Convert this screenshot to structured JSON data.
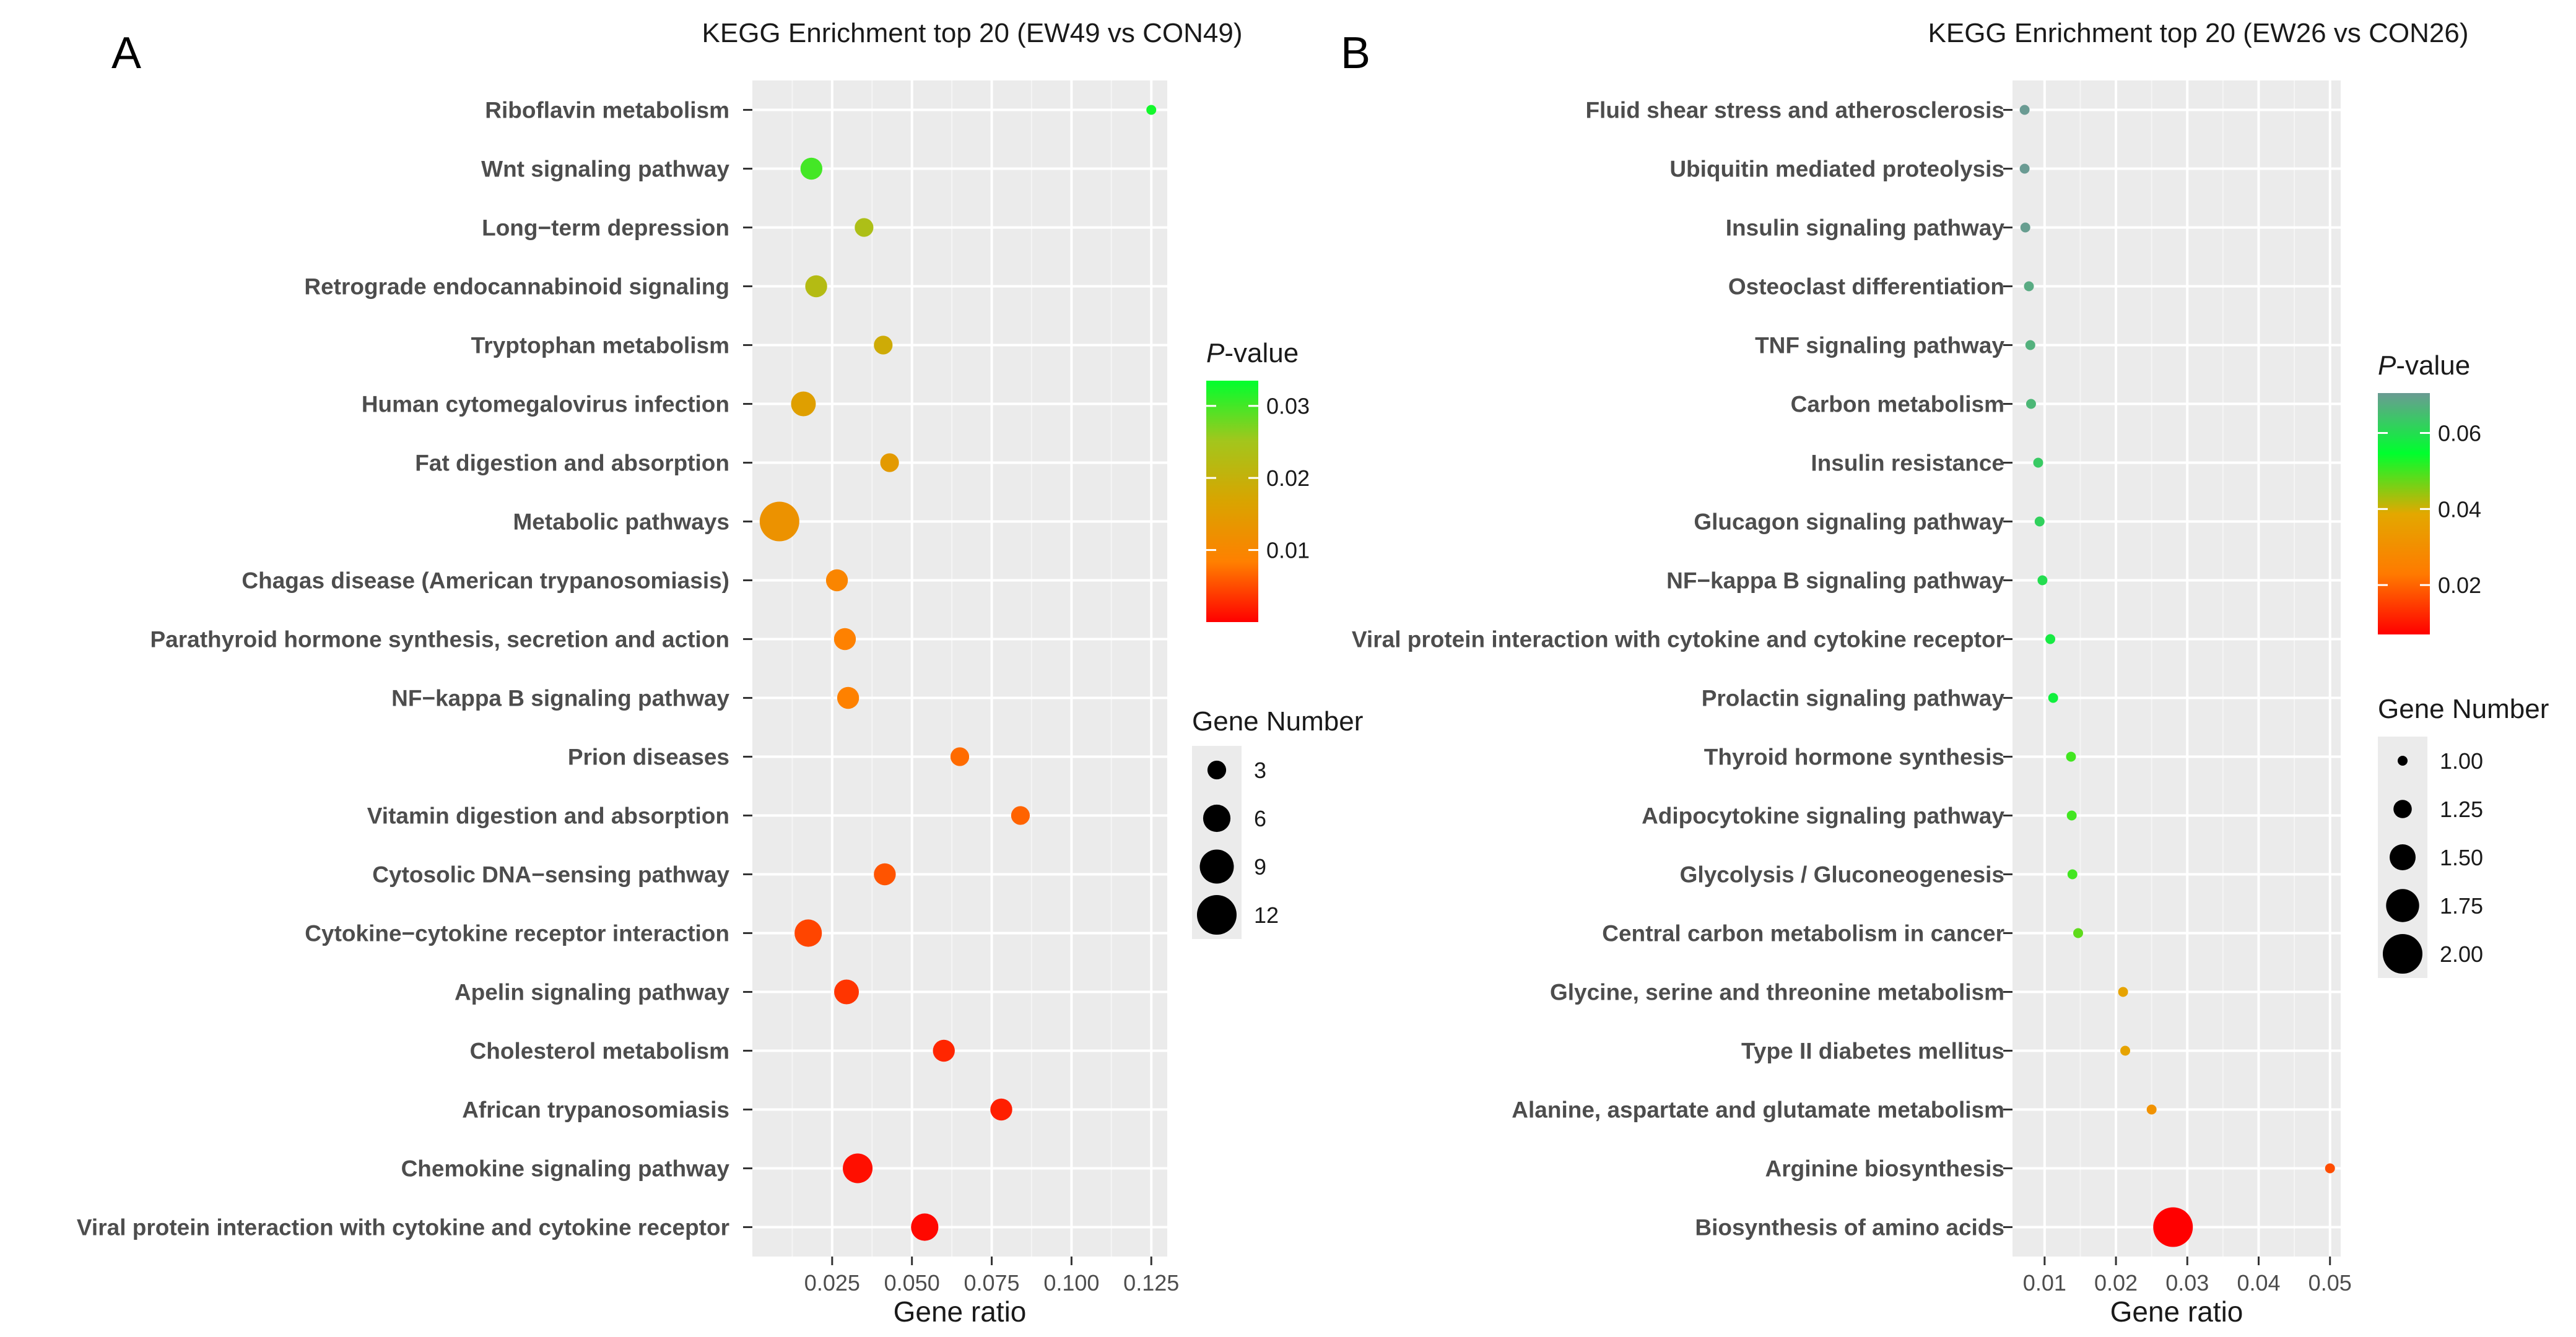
{
  "chart_data": [
    {
      "panel": "A",
      "type": "scatter",
      "title": "KEGG Enrichment top 20 (EW49 vs CON49)",
      "xlabel": "Gene ratio",
      "ylabel": "",
      "xlim": [
        0.0,
        0.13
      ],
      "xticks": [
        0.025,
        0.05,
        0.075,
        0.1,
        0.125
      ],
      "xtick_labels": [
        "0.025",
        "0.050",
        "0.075",
        "0.100",
        "0.125"
      ],
      "grid": true,
      "color_legend": {
        "title_italic": "P",
        "title_rest": "-value",
        "min": 0.0,
        "max": 0.0335,
        "ticks": [
          0.01,
          0.02,
          0.03
        ],
        "tick_labels": [
          "0.01",
          "0.02",
          "0.03"
        ],
        "colors": [
          "#ff0000",
          "#ff8000",
          "#d9a400",
          "#a3c61c",
          "#00ff2e"
        ]
      },
      "size_legend": {
        "title": "Gene Number",
        "values": [
          3,
          6,
          9,
          12
        ],
        "labels": [
          "3",
          "6",
          "9",
          "12"
        ],
        "min": 1,
        "max": 12
      },
      "points": [
        {
          "term": "Riboflavin metabolism",
          "x": 0.125,
          "genes": 1,
          "p": 0.0325
        },
        {
          "term": "Wnt signaling pathway",
          "x": 0.0185,
          "genes": 4,
          "p": 0.03
        },
        {
          "term": "Long−term depression",
          "x": 0.035,
          "genes": 3,
          "p": 0.0235
        },
        {
          "term": "Retrograde endocannabinoid signaling",
          "x": 0.02,
          "genes": 4,
          "p": 0.0225
        },
        {
          "term": "Tryptophan metabolism",
          "x": 0.041,
          "genes": 3,
          "p": 0.0185
        },
        {
          "term": "Human cytomegalovirus infection",
          "x": 0.016,
          "genes": 5,
          "p": 0.0155
        },
        {
          "term": "Fat digestion and absorption",
          "x": 0.043,
          "genes": 3,
          "p": 0.0145
        },
        {
          "term": "Metabolic pathways",
          "x": 0.0085,
          "genes": 12,
          "p": 0.0125
        },
        {
          "term": "Chagas disease (American trypanosomiasis)",
          "x": 0.0265,
          "genes": 4,
          "p": 0.0095
        },
        {
          "term": "Parathyroid hormone synthesis, secretion and action",
          "x": 0.029,
          "genes": 4,
          "p": 0.0085
        },
        {
          "term": "NF−kappa B signaling pathway",
          "x": 0.03,
          "genes": 4,
          "p": 0.0085
        },
        {
          "term": "Prion diseases",
          "x": 0.065,
          "genes": 3,
          "p": 0.007
        },
        {
          "term": "Vitamin digestion and absorption",
          "x": 0.084,
          "genes": 3,
          "p": 0.0065
        },
        {
          "term": "Cytosolic DNA−sensing pathway",
          "x": 0.0415,
          "genes": 4,
          "p": 0.0055
        },
        {
          "term": "Cytokine−cytokine receptor interaction",
          "x": 0.0175,
          "genes": 6,
          "p": 0.0045
        },
        {
          "term": "Apelin signaling pathway",
          "x": 0.0295,
          "genes": 5,
          "p": 0.0035
        },
        {
          "term": "Cholesterol metabolism",
          "x": 0.06,
          "genes": 4,
          "p": 0.0025
        },
        {
          "term": "African trypanosomiasis",
          "x": 0.078,
          "genes": 4,
          "p": 0.002
        },
        {
          "term": "Chemokine signaling pathway",
          "x": 0.033,
          "genes": 7,
          "p": 0.001
        },
        {
          "term": "Viral protein interaction with cytokine and cytokine receptor",
          "x": 0.054,
          "genes": 6,
          "p": 0.0005
        }
      ]
    },
    {
      "panel": "B",
      "type": "scatter",
      "title": "KEGG Enrichment top 20 (EW26 vs CON26)",
      "xlabel": "Gene ratio",
      "ylabel": "",
      "xlim": [
        0.0055,
        0.0515
      ],
      "xticks": [
        0.01,
        0.02,
        0.03,
        0.04,
        0.05
      ],
      "xtick_labels": [
        "0.01",
        "0.02",
        "0.03",
        "0.04",
        "0.05"
      ],
      "grid": true,
      "color_legend": {
        "title_italic": "P",
        "title_rest": "-value",
        "min": 0.007,
        "max": 0.0705,
        "ticks": [
          0.02,
          0.04,
          0.06
        ],
        "tick_labels": [
          "0.02",
          "0.04",
          "0.06"
        ],
        "colors": [
          "#ff0000",
          "#ff7a00",
          "#e3a800",
          "#00ff2e",
          "#6a9b93"
        ]
      },
      "size_legend": {
        "title": "Gene Number",
        "values": [
          1.0,
          1.25,
          1.5,
          1.75,
          2.0
        ],
        "labels": [
          "1.00",
          "1.25",
          "1.50",
          "1.75",
          "2.00"
        ],
        "min": 1.0,
        "max": 2.0
      },
      "points": [
        {
          "term": "Fluid shear stress and atherosclerosis",
          "x": 0.0072,
          "genes": 1,
          "p": 0.0705
        },
        {
          "term": "Ubiquitin mediated proteolysis",
          "x": 0.0072,
          "genes": 1,
          "p": 0.0705
        },
        {
          "term": "Insulin signaling pathway",
          "x": 0.0073,
          "genes": 1,
          "p": 0.07
        },
        {
          "term": "Osteoclast differentiation",
          "x": 0.0078,
          "genes": 1,
          "p": 0.068
        },
        {
          "term": "TNF signaling pathway",
          "x": 0.008,
          "genes": 1,
          "p": 0.067
        },
        {
          "term": "Carbon metabolism",
          "x": 0.0081,
          "genes": 1,
          "p": 0.066
        },
        {
          "term": "Insulin resistance",
          "x": 0.0091,
          "genes": 1,
          "p": 0.063
        },
        {
          "term": "Glucagon signaling pathway",
          "x": 0.0093,
          "genes": 1,
          "p": 0.062
        },
        {
          "term": "NF−kappa B signaling pathway",
          "x": 0.0097,
          "genes": 1,
          "p": 0.06
        },
        {
          "term": "Viral protein interaction with cytokine and cytokine receptor",
          "x": 0.0108,
          "genes": 1,
          "p": 0.058
        },
        {
          "term": "Prolactin signaling pathway",
          "x": 0.0112,
          "genes": 1,
          "p": 0.057
        },
        {
          "term": "Thyroid hormone synthesis",
          "x": 0.0137,
          "genes": 1,
          "p": 0.05
        },
        {
          "term": "Adipocytokine signaling pathway",
          "x": 0.0138,
          "genes": 1,
          "p": 0.05
        },
        {
          "term": "Glycolysis / Gluconeogenesis",
          "x": 0.0139,
          "genes": 1,
          "p": 0.05
        },
        {
          "term": "Central carbon metabolism in cancer",
          "x": 0.0147,
          "genes": 1,
          "p": 0.048
        },
        {
          "term": "Glycine, serine and threonine metabolism",
          "x": 0.021,
          "genes": 1,
          "p": 0.037
        },
        {
          "term": "Type II diabetes mellitus",
          "x": 0.0213,
          "genes": 1,
          "p": 0.037
        },
        {
          "term": "Alanine, aspartate and glutamate metabolism",
          "x": 0.025,
          "genes": 1,
          "p": 0.031
        },
        {
          "term": "Arginine biosynthesis",
          "x": 0.05,
          "genes": 1,
          "p": 0.017
        },
        {
          "term": "Biosynthesis of amino acids",
          "x": 0.028,
          "genes": 2,
          "p": 0.007
        }
      ]
    }
  ]
}
